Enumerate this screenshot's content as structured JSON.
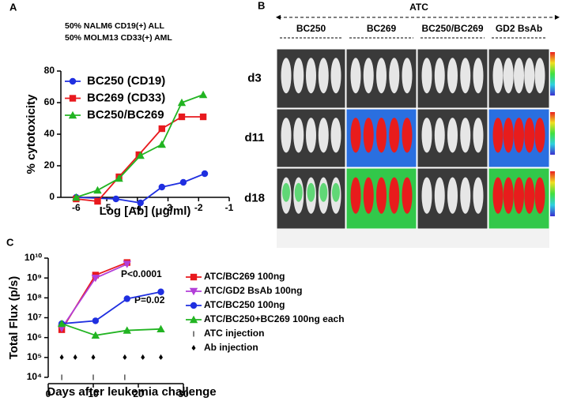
{
  "panel_labels": [
    "A",
    "B",
    "C"
  ],
  "chart_data": [
    {
      "type": "line",
      "subtitle": [
        "50% NALM6 CD19(+) ALL",
        "50% MOLM13 CD33(+) AML"
      ],
      "x_label": "Log [Ab] (μg/ml)",
      "y_label": "% cytotoxicity",
      "xlim": [
        -6.5,
        -1
      ],
      "xticks": [
        -6,
        -5,
        -4,
        -3,
        -2,
        -1
      ],
      "ylim": [
        0,
        80
      ],
      "yticks": [
        0,
        20,
        40,
        60,
        80
      ],
      "series": [
        {
          "name": "BC250 (CD19)",
          "color": "#1f2fe0",
          "marker": "circle",
          "line": true,
          "x": [
            -6,
            -4.7,
            -3.9,
            -3.2,
            -2.5,
            -1.8
          ],
          "values": [
            0,
            -1,
            -3.5,
            6.5,
            9.5,
            15
          ]
        },
        {
          "name": "BC269 (CD33)",
          "color": "#e8191e",
          "marker": "square",
          "line": true,
          "x": [
            -6,
            -5.3,
            -4.6,
            -3.95,
            -3.2,
            -2.55,
            -1.85
          ],
          "values": [
            -1,
            -2.5,
            13,
            27,
            43.5,
            51,
            51
          ]
        },
        {
          "name": "BC250/BC269",
          "color": "#22b422",
          "marker": "triangle",
          "line": true,
          "x": [
            -6,
            -5.3,
            -4.6,
            -3.9,
            -3.2,
            -2.55,
            -1.85
          ],
          "values": [
            0,
            4.5,
            12,
            26.5,
            33.5,
            60,
            65
          ]
        }
      ]
    },
    {
      "type": "line",
      "log_scale": true,
      "x_label": "Days after leukemia challenge",
      "y_label": "Total Flux (p/s)",
      "xlim": [
        0,
        30
      ],
      "xticks": [
        0,
        10,
        20,
        30
      ],
      "ylim": [
        10000,
        10000000000
      ],
      "yticks": [
        {
          "value": 10000,
          "label": "10⁴"
        },
        {
          "value": 100000,
          "label": "10⁵"
        },
        {
          "value": 1000000,
          "label": "10⁶"
        },
        {
          "value": 10000000,
          "label": "10⁷"
        },
        {
          "value": 100000000,
          "label": "10⁸"
        },
        {
          "value": 1000000000,
          "label": "10⁹"
        },
        {
          "value": 10000000000,
          "label": "10¹⁰"
        }
      ],
      "annotations": [
        "P<0.0001",
        "P=0.02"
      ],
      "series": [
        {
          "name": "ATC/BC269 100ng",
          "color": "#e8191e",
          "marker": "square",
          "line": true,
          "x": [
            3,
            10.5,
            17.5
          ],
          "values": [
            2500000,
            1400000000,
            6000000000
          ]
        },
        {
          "name": "ATC/GD2 BsAb 100ng",
          "color": "#b23fd8",
          "marker": "triangle-down",
          "line": true,
          "x": [
            3,
            10.5,
            17.5
          ],
          "values": [
            3000000,
            1000000000,
            5000000000
          ]
        },
        {
          "name": "ATC/BC250 100ng",
          "color": "#1f2fe0",
          "marker": "circle",
          "line": true,
          "x": [
            3,
            10.5,
            17.5,
            25
          ],
          "values": [
            5000000,
            7000000,
            90000000,
            200000000
          ]
        },
        {
          "name": "ATC/BC250+BC269 100ng each",
          "color": "#22b422",
          "marker": "triangle",
          "line": true,
          "x": [
            3,
            10.5,
            17.5,
            25
          ],
          "values": [
            5000000,
            1300000,
            2300000,
            2700000
          ]
        },
        {
          "name": "ATC injection",
          "color": "#000000",
          "marker": "tick",
          "line": false,
          "x": [
            3,
            10,
            17
          ],
          "values": [
            10000,
            10000,
            10000
          ]
        },
        {
          "name": "Ab injection",
          "color": "#000000",
          "marker": "diamond",
          "line": false,
          "x": [
            3,
            6,
            10,
            17,
            21,
            25
          ],
          "values": [
            100000,
            100000,
            100000,
            100000,
            100000,
            100000
          ]
        }
      ]
    }
  ],
  "panel_b": {
    "title": "ATC",
    "columns": [
      "BC250",
      "BC269",
      "BC250/BC269",
      "GD2 BsAb"
    ],
    "rows": [
      "d3",
      "d11",
      "d18"
    ]
  }
}
